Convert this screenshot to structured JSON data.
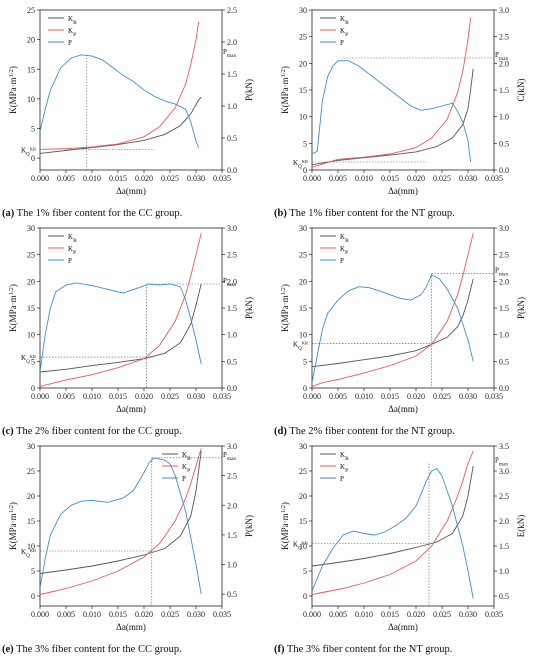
{
  "chart_data": [
    {
      "type": "line",
      "panel": "a",
      "caption_letter": "(a)",
      "caption_text": " The 1% fiber content for the CC group.",
      "xlabel": "Δa(mm)",
      "ylabel": "K(MPa·m",
      "ylabel_exp": "1/2",
      "y2label": "P(kN)",
      "xlim": [
        0,
        0.035
      ],
      "ylim": [
        -2,
        25
      ],
      "y2lim": [
        0,
        2.5
      ],
      "xticks": [
        "0.000",
        "0.005",
        "0.010",
        "0.015",
        "0.020",
        "0.025",
        "0.030",
        "0.035"
      ],
      "yticks": [
        0,
        5,
        10,
        15,
        20,
        25
      ],
      "y2ticks": [
        "0.0",
        "0.5",
        "1.0",
        "1.5",
        "2.0",
        "2.5"
      ],
      "legend": {
        "position": "top-left",
        "entries": [
          "K_R",
          "K_P",
          "P"
        ]
      },
      "marker_label": "P_max",
      "marker_y2": 1.8,
      "marker_x": 0.009,
      "marker_lines": "vertical",
      "kq_label": "K_Q^KR",
      "kq_y": 1.5,
      "series": [
        {
          "name": "K",
          "sub": "R",
          "color": "#555555",
          "axis": "left",
          "x": [
            0,
            0.005,
            0.01,
            0.015,
            0.02,
            0.024,
            0.027,
            0.029,
            0.0305,
            0.031
          ],
          "y": [
            0.8,
            1.3,
            1.8,
            2.3,
            3.0,
            4.0,
            5.5,
            7.5,
            9.8,
            10.3
          ]
        },
        {
          "name": "K",
          "sub": "P",
          "color": "#e65a5a",
          "axis": "left",
          "x": [
            0,
            0.005,
            0.01,
            0.015,
            0.02,
            0.023,
            0.026,
            0.028,
            0.029,
            0.03,
            0.0305
          ],
          "y": [
            1.5,
            1.6,
            1.9,
            2.4,
            3.6,
            5.3,
            8.5,
            12.5,
            15.8,
            20.0,
            23.0
          ]
        },
        {
          "name": "P",
          "sub": "",
          "color": "#3b8fd1",
          "axis": "right",
          "x": [
            0,
            0.001,
            0.002,
            0.004,
            0.006,
            0.008,
            0.01,
            0.012,
            0.014,
            0.016,
            0.018,
            0.02,
            0.022,
            0.024,
            0.026,
            0.028,
            0.029,
            0.03,
            0.0305
          ],
          "y": [
            0.6,
            0.95,
            1.25,
            1.6,
            1.75,
            1.8,
            1.78,
            1.72,
            1.6,
            1.48,
            1.38,
            1.25,
            1.15,
            1.08,
            1.03,
            0.95,
            0.75,
            0.45,
            0.35
          ]
        }
      ]
    },
    {
      "type": "line",
      "panel": "b",
      "caption_letter": "(b)",
      "caption_text": " The 1% fiber content for the NT group.",
      "xlabel": "Δa(mm)",
      "ylabel": "K(MPa·m",
      "ylabel_exp": "1/2",
      "y2label": "C(kN)",
      "xlim": [
        0,
        0.035
      ],
      "ylim": [
        0,
        30
      ],
      "y2lim": [
        0,
        3.0
      ],
      "xticks": [
        "0.000",
        "0.005",
        "0.010",
        "0.015",
        "0.020",
        "0.025",
        "0.030",
        "0.035"
      ],
      "yticks": [
        0,
        5,
        10,
        15,
        20,
        25,
        30
      ],
      "y2ticks": [
        "0.0",
        "0.5",
        "1.0",
        "1.5",
        "2.0",
        "2.5",
        "3.0"
      ],
      "legend": {
        "position": "top-left",
        "entries": [
          "K_R",
          "K_P",
          "P"
        ]
      },
      "marker_label": "P_max",
      "marker_y2": 2.1,
      "marker_x": 0.006,
      "marker_lines": "horizontal",
      "kq_label": "K_Q^KR",
      "kq_y": 1.5,
      "series": [
        {
          "name": "K",
          "sub": "R",
          "color": "#555555",
          "axis": "left",
          "x": [
            0,
            0.005,
            0.01,
            0.015,
            0.02,
            0.024,
            0.027,
            0.029,
            0.03,
            0.0305,
            0.031
          ],
          "y": [
            1.0,
            1.8,
            2.3,
            2.8,
            3.4,
            4.4,
            6.0,
            8.5,
            11.5,
            15.0,
            19.0
          ]
        },
        {
          "name": "K",
          "sub": "P",
          "color": "#e65a5a",
          "axis": "left",
          "x": [
            0,
            0.005,
            0.01,
            0.015,
            0.02,
            0.023,
            0.026,
            0.028,
            0.029,
            0.03,
            0.0305
          ],
          "y": [
            0.5,
            2.0,
            2.4,
            3.0,
            4.2,
            6.0,
            9.5,
            14.5,
            18.5,
            24.5,
            28.5
          ]
        },
        {
          "name": "P",
          "sub": "",
          "color": "#3b8fd1",
          "axis": "right",
          "x": [
            0,
            0.001,
            0.002,
            0.003,
            0.004,
            0.005,
            0.007,
            0.009,
            0.011,
            0.013,
            0.015,
            0.017,
            0.019,
            0.021,
            0.023,
            0.025,
            0.027,
            0.028,
            0.029,
            0.03,
            0.0305
          ],
          "y": [
            0.3,
            0.35,
            1.3,
            1.75,
            1.95,
            2.05,
            2.05,
            1.95,
            1.8,
            1.65,
            1.5,
            1.35,
            1.2,
            1.12,
            1.15,
            1.2,
            1.25,
            1.1,
            0.9,
            0.55,
            0.15
          ]
        }
      ]
    },
    {
      "type": "line",
      "panel": "c",
      "caption_letter": "(c)",
      "caption_text": " The 2% fiber content for the CC group.",
      "xlabel": "Δa(mm)",
      "ylabel": "K(MPa·m",
      "ylabel_exp": "1/2",
      "y2label": "P(kN)",
      "xlim": [
        0,
        0.035
      ],
      "ylim": [
        0,
        30
      ],
      "y2lim": [
        0,
        3.0
      ],
      "xticks": [
        "0.000",
        "0.005",
        "0.010",
        "0.015",
        "0.020",
        "0.025",
        "0.030",
        "0.035"
      ],
      "yticks": [
        0,
        5,
        10,
        15,
        20,
        25,
        30
      ],
      "y2ticks": [
        "0.0",
        "0.5",
        "1.0",
        "1.5",
        "2.0",
        "2.5",
        "3.0"
      ],
      "legend": {
        "position": "top-left",
        "entries": [
          "K_R",
          "K_P",
          "P"
        ]
      },
      "marker_label": "P_max",
      "marker_y2": 1.95,
      "marker_x": 0.0205,
      "marker_lines": "both",
      "kq_label": "K_Q^KR",
      "kq_y": 5.8,
      "series": [
        {
          "name": "K",
          "sub": "R",
          "color": "#555555",
          "axis": "left",
          "x": [
            0,
            0.005,
            0.01,
            0.015,
            0.02,
            0.024,
            0.027,
            0.029,
            0.03,
            0.031
          ],
          "y": [
            3.0,
            3.5,
            4.2,
            4.8,
            5.5,
            6.5,
            8.5,
            12.0,
            15.5,
            19.5
          ]
        },
        {
          "name": "K",
          "sub": "P",
          "color": "#e65a5a",
          "axis": "left",
          "x": [
            0,
            0.005,
            0.01,
            0.015,
            0.02,
            0.023,
            0.026,
            0.028,
            0.029,
            0.03,
            0.031
          ],
          "y": [
            0.3,
            1.5,
            2.5,
            3.8,
            5.5,
            8.0,
            12.5,
            17.5,
            21.0,
            25.0,
            29.0
          ]
        },
        {
          "name": "P",
          "sub": "",
          "color": "#3b8fd1",
          "axis": "right",
          "x": [
            0,
            0.001,
            0.002,
            0.003,
            0.005,
            0.007,
            0.01,
            0.013,
            0.016,
            0.019,
            0.021,
            0.023,
            0.025,
            0.027,
            0.028,
            0.029,
            0.03,
            0.031
          ],
          "y": [
            0.3,
            1.0,
            1.5,
            1.8,
            1.93,
            1.97,
            1.92,
            1.85,
            1.78,
            1.88,
            1.95,
            1.93,
            1.95,
            1.9,
            1.65,
            1.3,
            0.9,
            0.45
          ]
        }
      ]
    },
    {
      "type": "line",
      "panel": "d",
      "caption_letter": "(d)",
      "caption_text": " The 2% fiber content for the NT group.",
      "xlabel": "Δa(mm)",
      "ylabel": "K(MPa·m",
      "ylabel_exp": "1/2",
      "y2label": "P(kN)",
      "xlim": [
        0,
        0.035
      ],
      "ylim": [
        0,
        30
      ],
      "y2lim": [
        0,
        3.0
      ],
      "xticks": [
        "0.000",
        "0.005",
        "0.010",
        "0.015",
        "0.020",
        "0.025",
        "0.030",
        "0.035"
      ],
      "yticks": [
        0,
        5,
        10,
        15,
        20,
        25,
        30
      ],
      "y2ticks": [
        "0.0",
        "0.5",
        "1.0",
        "1.5",
        "2.0",
        "2.5",
        "3.0"
      ],
      "legend": {
        "position": "top-left",
        "entries": [
          "K_R",
          "K_P",
          "P"
        ]
      },
      "marker_label": "P_max",
      "marker_y2": 2.15,
      "marker_x": 0.023,
      "marker_lines": "both",
      "kq_label": "K_Q^KR",
      "kq_y": 8.3,
      "series": [
        {
          "name": "K",
          "sub": "R",
          "color": "#555555",
          "axis": "left",
          "x": [
            0,
            0.005,
            0.01,
            0.015,
            0.02,
            0.023,
            0.026,
            0.028,
            0.029,
            0.03,
            0.031
          ],
          "y": [
            4.0,
            4.6,
            5.3,
            6.0,
            7.0,
            8.2,
            9.5,
            11.5,
            13.5,
            16.5,
            20.5
          ]
        },
        {
          "name": "K",
          "sub": "P",
          "color": "#e65a5a",
          "axis": "left",
          "x": [
            0,
            0.002,
            0.005,
            0.01,
            0.015,
            0.02,
            0.023,
            0.026,
            0.028,
            0.029,
            0.03,
            0.031
          ],
          "y": [
            0.3,
            1.0,
            1.6,
            2.8,
            4.2,
            6.0,
            8.2,
            12.5,
            17.5,
            21.0,
            25.0,
            29.0
          ]
        },
        {
          "name": "P",
          "sub": "",
          "color": "#3b8fd1",
          "axis": "right",
          "x": [
            0,
            0.001,
            0.002,
            0.003,
            0.005,
            0.007,
            0.009,
            0.011,
            0.013,
            0.015,
            0.017,
            0.019,
            0.021,
            0.022,
            0.023,
            0.0245,
            0.026,
            0.028,
            0.029,
            0.03,
            0.031
          ],
          "y": [
            0.1,
            0.6,
            1.1,
            1.4,
            1.65,
            1.82,
            1.9,
            1.88,
            1.82,
            1.75,
            1.68,
            1.65,
            1.75,
            1.9,
            2.12,
            2.05,
            1.85,
            1.5,
            1.2,
            0.9,
            0.5
          ]
        }
      ]
    },
    {
      "type": "line",
      "panel": "e",
      "caption_letter": "(e)",
      "caption_text": " The 3% fiber content for the CC group.",
      "xlabel": "Δa(mm)",
      "ylabel": "K(MPa·m",
      "ylabel_exp": "1/2",
      "y2label": "P(kN)",
      "xlim": [
        0,
        0.035
      ],
      "ylim": [
        -2,
        30
      ],
      "y2lim": [
        0.3,
        3.0
      ],
      "xticks": [
        "0.000",
        "0.005",
        "0.010",
        "0.015",
        "0.020",
        "0.025",
        "0.030",
        "0.035"
      ],
      "yticks": [
        0,
        5,
        10,
        15,
        20,
        25,
        30
      ],
      "y2ticks": [
        "0.5",
        "1.0",
        "1.5",
        "2.0",
        "2.5",
        "3.0"
      ],
      "legend": {
        "position": "top-right",
        "entries": [
          "K_R",
          "K_P",
          "P"
        ]
      },
      "marker_label": "P_max",
      "marker_y2": 2.8,
      "marker_x": 0.0215,
      "marker_lines": "both",
      "kq_label": "K_Q^KR",
      "kq_y": 9.0,
      "series": [
        {
          "name": "K",
          "sub": "R",
          "color": "#555555",
          "axis": "left",
          "x": [
            0,
            0.005,
            0.01,
            0.015,
            0.02,
            0.024,
            0.027,
            0.029,
            0.03,
            0.031
          ],
          "y": [
            4.5,
            5.2,
            6.0,
            7.0,
            8.2,
            9.5,
            12.0,
            16.0,
            21.0,
            29.0
          ]
        },
        {
          "name": "K",
          "sub": "P",
          "color": "#e65a5a",
          "axis": "left",
          "x": [
            0,
            0.003,
            0.006,
            0.01,
            0.015,
            0.02,
            0.023,
            0.026,
            0.028,
            0.029,
            0.03,
            0.031
          ],
          "y": [
            0.3,
            1.0,
            1.8,
            3.0,
            5.0,
            7.8,
            10.5,
            15.0,
            19.5,
            22.5,
            26.0,
            29.5
          ]
        },
        {
          "name": "P",
          "sub": "",
          "color": "#3b8fd1",
          "axis": "right",
          "x": [
            0,
            0.001,
            0.002,
            0.004,
            0.006,
            0.008,
            0.01,
            0.013,
            0.016,
            0.018,
            0.02,
            0.021,
            0.022,
            0.024,
            0.025,
            0.026,
            0.027,
            0.028,
            0.029,
            0.03,
            0.031
          ],
          "y": [
            0.6,
            1.1,
            1.5,
            1.85,
            2.0,
            2.07,
            2.08,
            2.05,
            2.12,
            2.25,
            2.55,
            2.72,
            2.8,
            2.76,
            2.7,
            2.5,
            2.2,
            1.9,
            1.45,
            1.0,
            0.5
          ]
        }
      ]
    },
    {
      "type": "line",
      "panel": "f",
      "caption_letter": "(f)",
      "caption_text": " The 3% fiber content for the NT group.",
      "xlabel": "Δa(mm)",
      "ylabel": "K(MPa·m",
      "ylabel_exp": "1/2",
      "y2label": "E(kN)",
      "xlim": [
        0,
        0.035
      ],
      "ylim": [
        -2,
        30
      ],
      "y2lim": [
        0.3,
        3.5
      ],
      "xticks": [
        "0.000",
        "0.005",
        "0.010",
        "0.015",
        "0.020",
        "0.025",
        "0.030",
        "0.035"
      ],
      "yticks": [
        0,
        5,
        10,
        15,
        20,
        25,
        30
      ],
      "y2ticks": [
        "0.5",
        "1.0",
        "1.5",
        "2.0",
        "2.5",
        "3.0",
        "3.5"
      ],
      "legend": {
        "position": "top-left",
        "entries": [
          "K_R",
          "K_P",
          "P"
        ]
      },
      "marker_label": "P_max",
      "marker_y2": 3.15,
      "marker_x": 0.0225,
      "marker_lines": "vertical",
      "kq_label": "K_Q^KR",
      "kq_y": 10.5,
      "series": [
        {
          "name": "K",
          "sub": "R",
          "color": "#555555",
          "axis": "left",
          "x": [
            0,
            0.005,
            0.01,
            0.015,
            0.02,
            0.024,
            0.027,
            0.029,
            0.03,
            0.031
          ],
          "y": [
            6.0,
            6.7,
            7.5,
            8.5,
            9.7,
            10.8,
            12.5,
            16.0,
            20.0,
            26.0
          ]
        },
        {
          "name": "K",
          "sub": "P",
          "color": "#e65a5a",
          "axis": "left",
          "x": [
            0,
            0.003,
            0.006,
            0.01,
            0.015,
            0.02,
            0.023,
            0.026,
            0.028,
            0.029,
            0.03,
            0.031
          ],
          "y": [
            0.3,
            0.9,
            1.5,
            2.6,
            4.3,
            7.0,
            10.0,
            15.0,
            20.0,
            23.0,
            26.5,
            29.0
          ]
        },
        {
          "name": "P",
          "sub": "",
          "color": "#3b8fd1",
          "axis": "right",
          "x": [
            0,
            0.001,
            0.002,
            0.004,
            0.006,
            0.008,
            0.01,
            0.012,
            0.014,
            0.016,
            0.018,
            0.02,
            0.021,
            0.022,
            0.023,
            0.024,
            0.025,
            0.026,
            0.027,
            0.028,
            0.029,
            0.03,
            0.031
          ],
          "y": [
            0.6,
            0.85,
            1.1,
            1.45,
            1.72,
            1.8,
            1.75,
            1.72,
            1.78,
            1.9,
            2.05,
            2.3,
            2.55,
            2.8,
            3.0,
            3.05,
            2.9,
            2.6,
            2.3,
            1.9,
            1.5,
            1.0,
            0.45
          ]
        }
      ]
    }
  ]
}
